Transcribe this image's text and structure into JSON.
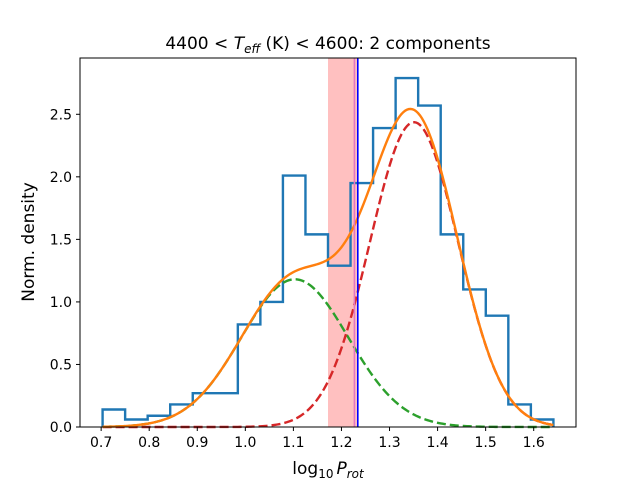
{
  "chart_data": {
    "type": "histogram-with-fits",
    "title": {
      "prefix": "4400 < ",
      "T": "T",
      "T_sub": "eff",
      "middle": " (K) < 4600: 2 components"
    },
    "xlabel": {
      "prefix": "log",
      "base": "10",
      "P": "P",
      "P_sub": "rot"
    },
    "ylabel": "Norm. density",
    "xlim": [
      0.656,
      1.688
    ],
    "ylim": [
      0,
      2.95
    ],
    "xticks": [
      {
        "value": 0.7,
        "label": "0.7"
      },
      {
        "value": 0.8,
        "label": "0.8"
      },
      {
        "value": 0.9,
        "label": "0.9"
      },
      {
        "value": 1.0,
        "label": "1.0"
      },
      {
        "value": 1.1,
        "label": "1.1"
      },
      {
        "value": 1.2,
        "label": "1.2"
      },
      {
        "value": 1.3,
        "label": "1.3"
      },
      {
        "value": 1.4,
        "label": "1.4"
      },
      {
        "value": 1.5,
        "label": "1.5"
      },
      {
        "value": 1.6,
        "label": "1.6"
      }
    ],
    "yticks": [
      {
        "value": 0.0,
        "label": "0.0"
      },
      {
        "value": 0.5,
        "label": "0.5"
      },
      {
        "value": 1.0,
        "label": "1.0"
      },
      {
        "value": 1.5,
        "label": "1.5"
      },
      {
        "value": 2.0,
        "label": "2.0"
      },
      {
        "value": 2.5,
        "label": "2.5"
      }
    ],
    "histogram": {
      "color": "#1f77b4",
      "bin_start": 0.703,
      "bin_width": 0.0469,
      "heights": [
        0.14,
        0.06,
        0.09,
        0.18,
        0.27,
        0.27,
        0.82,
        1.0,
        2.01,
        1.54,
        1.29,
        1.95,
        2.39,
        2.79,
        2.57,
        1.54,
        1.1,
        0.89,
        0.18,
        0.06
      ]
    },
    "shaded_band": {
      "x0": 1.172,
      "x1": 1.233,
      "color": "#ff9999",
      "opacity": 0.62
    },
    "vertical_lines": [
      {
        "x": 1.234,
        "color": "#0000ff"
      },
      {
        "x": 1.227,
        "color": "#e377c2"
      }
    ],
    "series": [
      {
        "name": "component-1",
        "style": "dashed",
        "color": "#2ca02c",
        "mu": 1.103,
        "sigma": 0.1113,
        "weight": 0.3294
      },
      {
        "name": "component-2",
        "style": "dashed",
        "color": "#d62728",
        "mu": 1.351,
        "sigma": 0.0918,
        "weight": 0.5607
      },
      {
        "name": "total",
        "style": "solid",
        "color": "#ff7f0e"
      }
    ],
    "curve_x_range": [
      0.703,
      1.641
    ]
  }
}
